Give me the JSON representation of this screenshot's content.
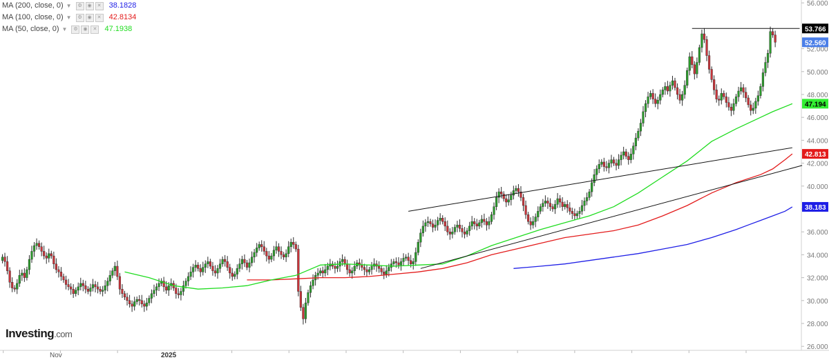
{
  "legend": [
    {
      "label": "MA (200, close, 0)",
      "value": "38.1828",
      "color": "#1e1ee6"
    },
    {
      "label": "MA (100, close, 0)",
      "value": "42.8134",
      "color": "#e31b1b"
    },
    {
      "label": "MA (50, close, 0)",
      "value": "47.1938",
      "color": "#1fdc1f"
    }
  ],
  "logo": {
    "brand": "Investing",
    "suffix": ".com"
  },
  "chart_data": {
    "type": "candlestick",
    "y_axis": {
      "position": "right",
      "range": [
        26,
        56
      ],
      "ticks": [
        "56.000",
        "54.000",
        "52.000",
        "50.000",
        "48.000",
        "46.000",
        "44.000",
        "42.000",
        "40.000",
        "38.000",
        "36.000",
        "34.000",
        "32.000",
        "30.000",
        "28.000",
        "26.000"
      ]
    },
    "x_axis": {
      "labels": [
        "Nov",
        "2025"
      ],
      "months": 14
    },
    "grid": false,
    "price_labels": [
      {
        "value": "53.766",
        "bg": "#000000",
        "color": "#ffffff"
      },
      {
        "value": "52.560",
        "bg": "#4a7ee8",
        "color": "#ffffff"
      },
      {
        "value": "47.194",
        "bg": "#33ee33",
        "color": "#000000"
      },
      {
        "value": "42.813",
        "bg": "#e31b1b",
        "color": "#ffffff"
      },
      {
        "value": "38.183",
        "bg": "#1e1ee6",
        "color": "#ffffff"
      }
    ],
    "close": [
      33.8,
      33.4,
      32.6,
      31.6,
      31.1,
      31.0,
      31.5,
      32.2,
      32.4,
      32.0,
      32.7,
      33.6,
      34.3,
      34.8,
      35.0,
      34.7,
      34.3,
      33.9,
      33.7,
      34.1,
      33.9,
      33.2,
      32.7,
      32.5,
      32.1,
      31.8,
      31.4,
      31.2,
      31.0,
      30.6,
      30.9,
      31.2,
      31.5,
      31.3,
      31.0,
      30.8,
      31.1,
      31.4,
      31.2,
      31.0,
      30.8,
      30.9,
      31.3,
      31.7,
      32.2,
      32.6,
      33.0,
      32.1,
      31.0,
      30.6,
      30.3,
      30.0,
      29.7,
      29.5,
      29.9,
      30.1,
      30.0,
      29.7,
      29.5,
      29.8,
      30.2,
      30.6,
      30.9,
      31.2,
      31.5,
      31.7,
      31.2,
      30.9,
      31.3,
      31.5,
      31.1,
      30.6,
      30.5,
      30.8,
      31.3,
      31.7,
      32.1,
      32.5,
      32.9,
      33.1,
      32.8,
      32.5,
      32.9,
      33.2,
      33.4,
      33.0,
      32.6,
      32.4,
      32.8,
      33.2,
      33.6,
      33.4,
      32.9,
      32.4,
      32.1,
      32.3,
      32.8,
      33.2,
      33.6,
      33.3,
      32.9,
      33.3,
      33.8,
      34.2,
      34.6,
      34.9,
      34.7,
      34.3,
      33.9,
      33.6,
      33.9,
      34.4,
      34.7,
      34.3,
      34.0,
      33.8,
      34.1,
      34.7,
      35.1,
      34.9,
      34.5,
      30.8,
      29.4,
      28.4,
      29.8,
      30.7,
      31.3,
      31.8,
      32.2,
      32.4,
      32.6,
      32.4,
      32.7,
      33.0,
      33.2,
      33.0,
      32.8,
      33.0,
      33.4,
      33.6,
      33.2,
      32.7,
      32.4,
      32.6,
      33.0,
      33.3,
      33.1,
      32.9,
      32.7,
      32.5,
      32.7,
      33.0,
      33.2,
      33.0,
      32.8,
      32.5,
      32.3,
      32.6,
      32.9,
      33.2,
      33.4,
      33.3,
      33.1,
      33.4,
      33.7,
      33.8,
      33.5,
      33.2,
      33.4,
      34.2,
      35.1,
      35.9,
      36.5,
      36.8,
      36.9,
      36.7,
      36.4,
      36.6,
      37.0,
      37.2,
      36.9,
      36.5,
      36.0,
      35.8,
      36.0,
      36.4,
      36.6,
      36.3,
      36.0,
      35.8,
      36.1,
      36.5,
      36.9,
      36.7,
      36.5,
      36.8,
      37.1,
      36.9,
      36.6,
      36.9,
      37.5,
      38.2,
      39.0,
      39.5,
      39.3,
      38.9,
      38.6,
      38.8,
      39.2,
      39.6,
      39.8,
      39.5,
      39.0,
      38.3,
      37.5,
      36.9,
      36.6,
      36.9,
      37.3,
      37.8,
      38.2,
      38.5,
      38.7,
      38.5,
      38.2,
      38.0,
      38.4,
      38.9,
      38.6,
      38.2,
      38.4,
      38.1,
      37.8,
      37.6,
      37.4,
      37.6,
      37.8,
      38.3,
      38.7,
      39.0,
      39.5,
      40.3,
      41.0,
      41.5,
      41.9,
      42.1,
      41.7,
      41.6,
      42.0,
      42.3,
      42.0,
      41.8,
      42.3,
      42.7,
      43.0,
      42.6,
      42.3,
      42.8,
      43.5,
      44.2,
      44.8,
      45.5,
      46.5,
      47.2,
      47.8,
      48.1,
      47.6,
      47.2,
      47.5,
      48.0,
      48.4,
      48.7,
      48.3,
      48.8,
      49.2,
      48.6,
      48.0,
      47.5,
      48.0,
      48.8,
      50.1,
      51.3,
      50.6,
      49.8,
      50.8,
      52.1,
      53.3,
      52.8,
      51.4,
      50.2,
      49.3,
      48.4,
      47.6,
      47.5,
      48.1,
      47.8,
      47.3,
      46.9,
      46.6,
      47.2,
      47.8,
      48.3,
      48.6,
      48.2,
      47.7,
      47.1,
      46.6,
      46.8,
      47.4,
      47.9,
      48.7,
      49.9,
      50.8,
      51.6,
      53.5,
      53.2,
      52.56
    ],
    "series": [
      {
        "name": "MA (200, close, 0)",
        "color": "#1e1ee6",
        "points": [
          [
            209,
            32.8
          ],
          [
            220,
            33.0
          ],
          [
            230,
            33.2
          ],
          [
            240,
            33.5
          ],
          [
            250,
            33.8
          ],
          [
            260,
            34.1
          ],
          [
            270,
            34.5
          ],
          [
            280,
            34.9
          ],
          [
            290,
            35.5
          ],
          [
            300,
            36.2
          ],
          [
            305,
            36.6
          ],
          [
            310,
            37.0
          ],
          [
            315,
            37.4
          ],
          [
            320,
            37.8
          ],
          [
            323,
            38.183
          ]
        ]
      },
      {
        "name": "MA (100, close, 0)",
        "color": "#e31b1b",
        "points": [
          [
            100,
            31.8
          ],
          [
            110,
            31.8
          ],
          [
            120,
            31.9
          ],
          [
            130,
            32.0
          ],
          [
            140,
            32.0
          ],
          [
            150,
            32.1
          ],
          [
            160,
            32.3
          ],
          [
            170,
            32.5
          ],
          [
            180,
            32.8
          ],
          [
            190,
            33.3
          ],
          [
            200,
            34.0
          ],
          [
            210,
            34.5
          ],
          [
            220,
            35.0
          ],
          [
            230,
            35.5
          ],
          [
            240,
            35.8
          ],
          [
            250,
            36.1
          ],
          [
            260,
            36.6
          ],
          [
            270,
            37.4
          ],
          [
            280,
            38.3
          ],
          [
            290,
            39.4
          ],
          [
            300,
            40.3
          ],
          [
            310,
            41.0
          ],
          [
            315,
            41.5
          ],
          [
            320,
            42.3
          ],
          [
            323,
            42.813
          ]
        ]
      },
      {
        "name": "MA (50, close, 0)",
        "color": "#1fdc1f",
        "points": [
          [
            50,
            32.5
          ],
          [
            60,
            32.0
          ],
          [
            70,
            31.3
          ],
          [
            80,
            31.0
          ],
          [
            90,
            31.1
          ],
          [
            100,
            31.3
          ],
          [
            110,
            31.8
          ],
          [
            120,
            32.2
          ],
          [
            130,
            33.1
          ],
          [
            140,
            33.2
          ],
          [
            150,
            33.1
          ],
          [
            160,
            33.0
          ],
          [
            170,
            33.1
          ],
          [
            180,
            33.2
          ],
          [
            190,
            33.9
          ],
          [
            200,
            34.8
          ],
          [
            210,
            35.5
          ],
          [
            220,
            36.2
          ],
          [
            230,
            36.8
          ],
          [
            240,
            37.4
          ],
          [
            250,
            38.2
          ],
          [
            260,
            39.4
          ],
          [
            270,
            40.8
          ],
          [
            280,
            42.2
          ],
          [
            290,
            43.9
          ],
          [
            300,
            45.0
          ],
          [
            310,
            46.0
          ],
          [
            315,
            46.5
          ],
          [
            323,
            47.194
          ]
        ]
      }
    ],
    "annotations": [
      {
        "type": "trendline",
        "points": [
          [
            166,
            37.8
          ],
          [
            323,
            43.35
          ]
        ]
      },
      {
        "type": "trendline",
        "points": [
          [
            171,
            32.8
          ],
          [
            327,
            41.8
          ]
        ]
      },
      {
        "type": "horizontal-line",
        "points": [
          [
            282,
            53.766
          ],
          [
            326,
            53.766
          ]
        ]
      }
    ]
  }
}
